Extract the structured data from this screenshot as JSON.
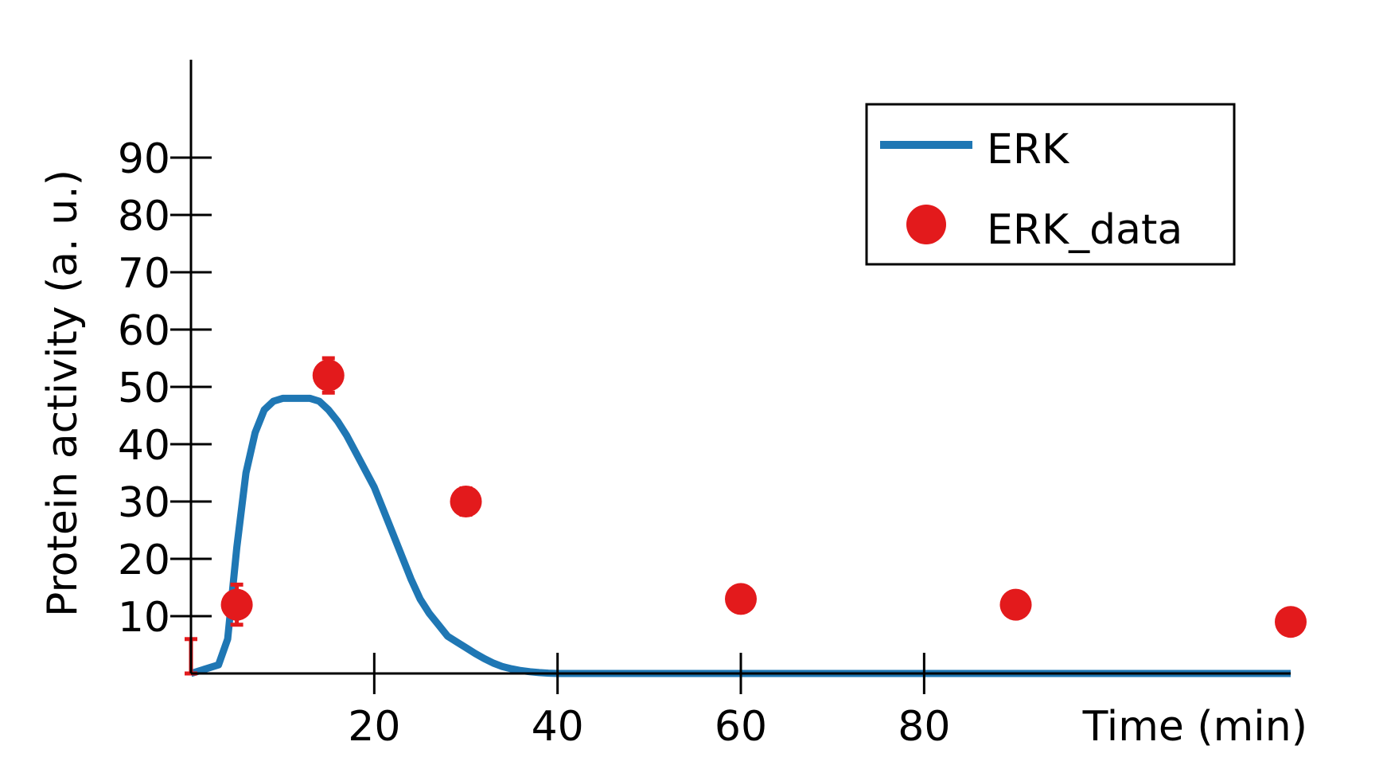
{
  "chart_data": {
    "type": "line",
    "xlabel": "Time (min)",
    "ylabel": "Protein activity (a. u.)",
    "xlim": [
      0,
      120
    ],
    "ylim": [
      0,
      100
    ],
    "xticks": [
      20,
      40,
      60,
      80
    ],
    "yticks": [
      10,
      20,
      30,
      40,
      50,
      60,
      70,
      80,
      90
    ],
    "legend_position": "top-right",
    "grid": false,
    "colors": {
      "model": "#1f77b4",
      "data": "#e31a1c",
      "axis": "#000000"
    },
    "series": [
      {
        "name": "ERK",
        "kind": "line",
        "x": [
          0,
          1,
          2,
          3,
          4,
          5,
          6,
          7,
          8,
          9,
          10,
          11,
          12,
          13,
          14,
          15,
          16,
          17,
          18,
          19,
          20,
          21,
          22,
          23,
          24,
          25,
          26,
          27,
          28,
          29,
          30,
          31,
          32,
          33,
          34,
          35,
          36,
          37,
          38,
          39,
          40,
          50,
          60,
          70,
          80,
          90,
          100,
          110,
          120
        ],
        "y": [
          0,
          0.5,
          1,
          1.5,
          6,
          22,
          35,
          42,
          46,
          47.5,
          48,
          48,
          48,
          48,
          47.5,
          46,
          44,
          41.5,
          38.5,
          35.5,
          32.5,
          28.5,
          24.5,
          20.5,
          16.5,
          13,
          10.5,
          8.5,
          6.5,
          5.5,
          4.5,
          3.5,
          2.6,
          1.8,
          1.2,
          0.8,
          0.5,
          0.3,
          0.15,
          0.05,
          0,
          0,
          0,
          0,
          0,
          0,
          0,
          0,
          0
        ]
      },
      {
        "name": "ERK_data",
        "kind": "scatter",
        "x": [
          0,
          5,
          15,
          30,
          60,
          90,
          120
        ],
        "y": [
          3,
          12,
          52,
          30,
          13,
          12,
          9
        ],
        "yerr": [
          3,
          3.5,
          3,
          2.3,
          1,
          1,
          1
        ]
      }
    ]
  }
}
